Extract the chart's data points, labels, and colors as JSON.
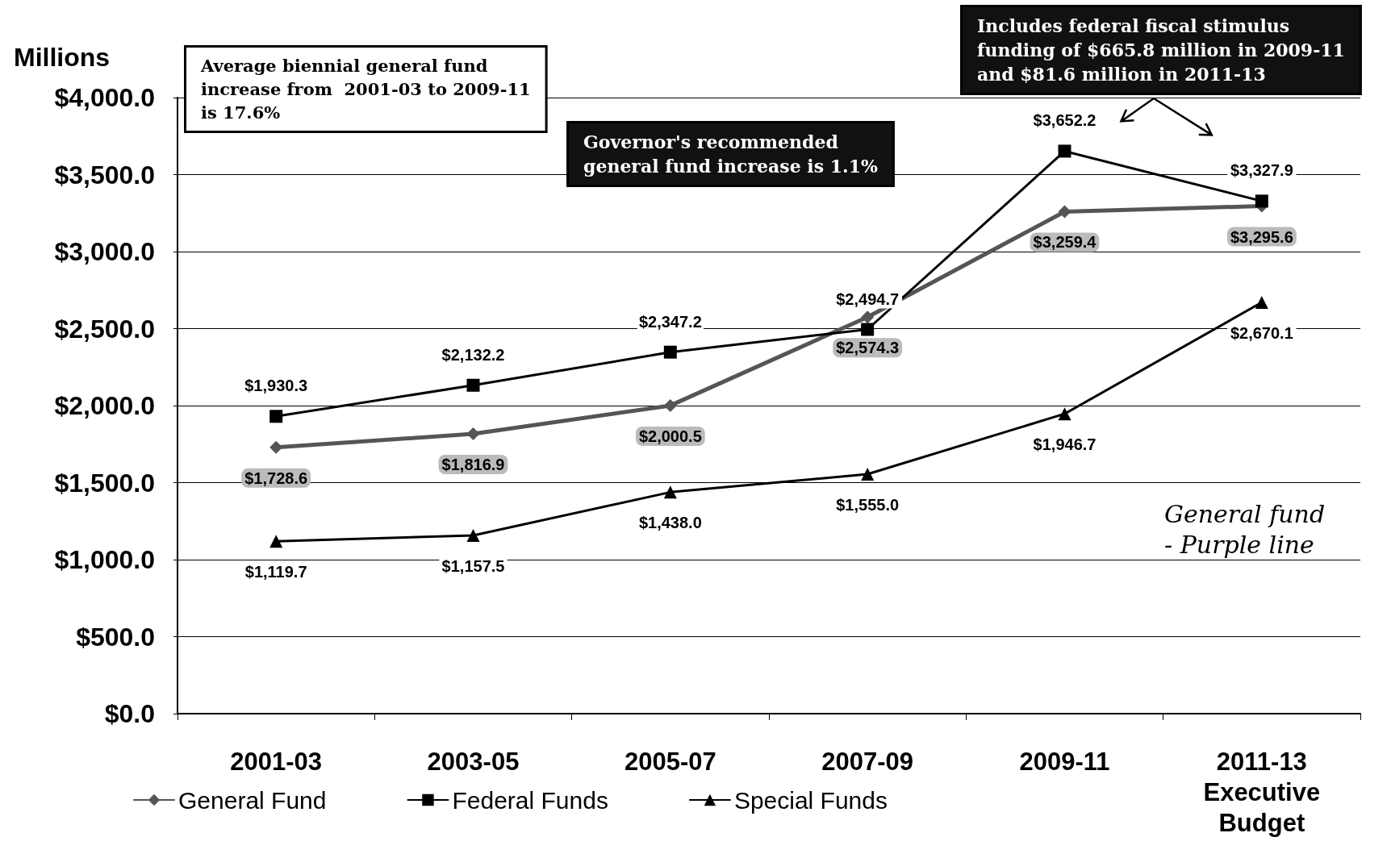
{
  "chart_data": {
    "type": "line",
    "ylabel": "Millions",
    "categories": [
      "2001-03",
      "2003-05",
      "2005-07",
      "2007-09",
      "2009-11",
      "2011-13\nExecutive\nBudget"
    ],
    "series": [
      {
        "name": "General Fund",
        "color": "#555555",
        "marker": "diamond",
        "values": [
          1728.6,
          1816.9,
          2000.5,
          2574.3,
          3259.4,
          3295.6
        ],
        "value_labels": [
          "$1,728.6",
          "$1,816.9",
          "$2,000.5",
          "$2,574.3",
          "$3,259.4",
          "$3,295.6"
        ]
      },
      {
        "name": "Federal Funds",
        "color": "#000000",
        "marker": "square",
        "values": [
          1930.3,
          2132.2,
          2347.2,
          2494.7,
          3652.2,
          3327.9
        ],
        "value_labels": [
          "$1,930.3",
          "$2,132.2",
          "$2,347.2",
          "$2,494.7",
          "$3,652.2",
          "$3,327.9"
        ]
      },
      {
        "name": "Special Funds",
        "color": "#000000",
        "marker": "triangle",
        "values": [
          1119.7,
          1157.5,
          1438.0,
          1555.0,
          1946.7,
          2670.1
        ],
        "value_labels": [
          "$1,119.7",
          "$1,157.5",
          "$1,438.0",
          "$1,555.0",
          "$1,946.7",
          "$2,670.1"
        ]
      }
    ],
    "ylim": [
      0,
      4000
    ],
    "yticks": [
      {
        "value": 0,
        "label": "$0.0"
      },
      {
        "value": 500,
        "label": "$500.0"
      },
      {
        "value": 1000,
        "label": "$1,000.0"
      },
      {
        "value": 1500,
        "label": "$1,500.0"
      },
      {
        "value": 2000,
        "label": "$2,000.0"
      },
      {
        "value": 2500,
        "label": "$2,500.0"
      },
      {
        "value": 3000,
        "label": "$3,000.0"
      },
      {
        "value": 3500,
        "label": "$3,500.0"
      },
      {
        "value": 4000,
        "label": "$4,000.0"
      }
    ],
    "grid": "y",
    "legend": "bottom",
    "line_style": "solid",
    "annotations": [
      "Average biennial general fund\nincrease from  2001-03 to 2009-11\nis 17.6%",
      "Governor's recommended\ngeneral fund increase is 1.1%",
      "Includes federal fiscal stimulus\nfunding of $665.8 million in 2009-11\nand $81.6 million in 2011-13",
      "General fund\n- Purple line"
    ]
  }
}
